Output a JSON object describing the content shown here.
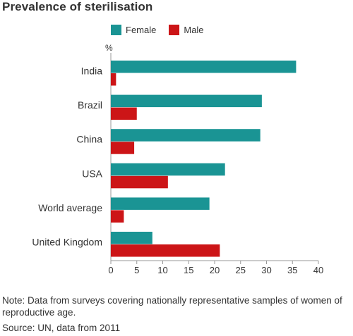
{
  "title": "Prevalence of sterilisation",
  "unit_label": "%",
  "legend": [
    {
      "label": "Female",
      "color": "#1a9494"
    },
    {
      "label": "Male",
      "color": "#cc1517"
    }
  ],
  "note": "Note: Data from surveys covering nationally representative samples of women of reproductive age.",
  "source": "Source: UN, data from 2011",
  "chart_data": {
    "type": "bar",
    "orientation": "horizontal",
    "title": "Prevalence of sterilisation",
    "categories": [
      "India",
      "Brazil",
      "China",
      "USA",
      "World average",
      "United Kingdom"
    ],
    "series": [
      {
        "name": "Female",
        "color": "#1a9494",
        "values": [
          35.7,
          29.1,
          28.8,
          22.0,
          19.0,
          8.0
        ]
      },
      {
        "name": "Male",
        "color": "#cc1517",
        "values": [
          1.0,
          5.0,
          4.5,
          11.0,
          2.5,
          21.0
        ]
      }
    ],
    "xlim": [
      0,
      40
    ],
    "xticks": [
      "0",
      "5",
      "10",
      "15",
      "20",
      "25",
      "30",
      "35",
      "40"
    ],
    "xlabel": "",
    "ylabel": "%",
    "grid": false,
    "legend_position": "top"
  }
}
